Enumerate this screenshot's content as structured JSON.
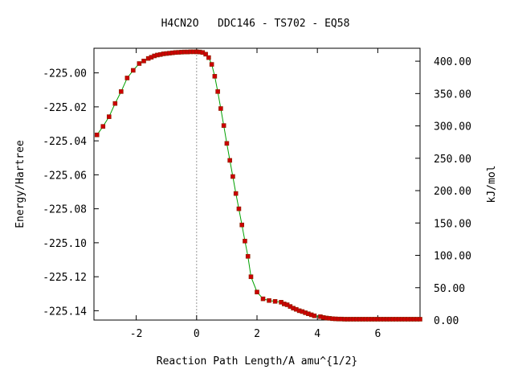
{
  "chart_data": {
    "type": "line",
    "title": "H4CN2O   DDC146 - TS702 - EQ58",
    "xlabel": "Reaction Path Length/A amu^{1/2}",
    "ylabel": "Energy/Hartree",
    "y2label": "kJ/mol",
    "xlim": [
      -3.4,
      7.4
    ],
    "ylim": [
      -225.1455,
      -224.9855
    ],
    "y2lim": [
      0,
      420
    ],
    "x_ticks": [
      -2,
      0,
      2,
      4,
      6
    ],
    "x_tick_labels": [
      "-2",
      "0",
      "2",
      "4",
      "6"
    ],
    "y_ticks": [
      -225.0,
      -225.02,
      -225.04,
      -225.06,
      -225.08,
      -225.1,
      -225.12,
      -225.14
    ],
    "y_tick_labels": [
      "-225.00",
      "-225.02",
      "-225.04",
      "-225.06",
      "-225.08",
      "-225.10",
      "-225.12",
      "-225.14"
    ],
    "y2_ticks": [
      0,
      50,
      100,
      150,
      200,
      250,
      300,
      350,
      400
    ],
    "y2_tick_labels": [
      "0.00",
      "50.00",
      "100.00",
      "150.00",
      "200.00",
      "250.00",
      "300.00",
      "350.00",
      "400.00"
    ],
    "ts_marker_x": 0,
    "grid": false,
    "line_color": "#00a000",
    "marker_color": "#cc0000",
    "series": [
      {
        "x": [
          -3.3,
          -3.1,
          -2.9,
          -2.7,
          -2.5,
          -2.3,
          -2.1,
          -1.9,
          -1.75,
          -1.6,
          -1.5,
          -1.4,
          -1.3,
          -1.2,
          -1.1,
          -1.0,
          -0.9,
          -0.8,
          -0.7,
          -0.6,
          -0.5,
          -0.4,
          -0.3,
          -0.2,
          -0.1,
          0.0,
          0.1,
          0.2,
          0.3,
          0.4,
          0.5,
          0.6,
          0.7,
          0.8,
          0.9,
          1.0,
          1.1,
          1.2,
          1.3,
          1.4,
          1.5,
          1.6,
          1.7,
          1.8,
          2.0,
          2.2,
          2.4,
          2.6,
          2.8,
          2.9,
          3.0,
          3.1,
          3.2,
          3.3,
          3.4,
          3.5,
          3.6,
          3.7,
          3.8,
          3.9,
          4.1,
          4.2,
          4.3,
          4.4,
          4.5,
          4.6,
          4.7,
          4.8,
          4.9,
          5.0,
          5.1,
          5.2,
          5.3,
          5.4,
          5.5,
          5.6,
          5.7,
          5.8,
          5.9,
          6.0,
          6.1,
          6.2,
          6.3,
          6.4,
          6.5,
          6.6,
          6.7,
          6.8,
          6.9,
          7.0,
          7.1,
          7.2,
          7.3,
          7.4
        ],
        "y": [
          -225.0365,
          -225.0315,
          -225.0258,
          -225.018,
          -225.011,
          -225.003,
          -224.9985,
          -224.9945,
          -224.993,
          -224.9915,
          -224.9908,
          -224.99,
          -224.9895,
          -224.9892,
          -224.9888,
          -224.9886,
          -224.9884,
          -224.9882,
          -224.988,
          -224.9879,
          -224.9878,
          -224.9877,
          -224.9877,
          -224.9876,
          -224.9876,
          -224.9876,
          -224.9877,
          -224.988,
          -224.989,
          -224.991,
          -224.995,
          -225.002,
          -225.011,
          -225.021,
          -225.031,
          -225.0415,
          -225.0515,
          -225.061,
          -225.071,
          -225.08,
          -225.0895,
          -225.099,
          -225.108,
          -225.12,
          -225.129,
          -225.133,
          -225.134,
          -225.1345,
          -225.135,
          -225.136,
          -225.1365,
          -225.1375,
          -225.1385,
          -225.1392,
          -225.14,
          -225.1405,
          -225.1412,
          -225.1418,
          -225.1424,
          -225.143,
          -225.1435,
          -225.144,
          -225.1443,
          -225.1445,
          -225.1447,
          -225.1448,
          -225.1449,
          -225.1449,
          -225.145,
          -225.145,
          -225.145,
          -225.145,
          -225.145,
          -225.145,
          -225.145,
          -225.145,
          -225.145,
          -225.145,
          -225.145,
          -225.145,
          -225.145,
          -225.145,
          -225.145,
          -225.145,
          -225.145,
          -225.145,
          -225.145,
          -225.145,
          -225.145,
          -225.145,
          -225.145,
          -225.145,
          -225.145,
          -225.145
        ]
      }
    ]
  }
}
